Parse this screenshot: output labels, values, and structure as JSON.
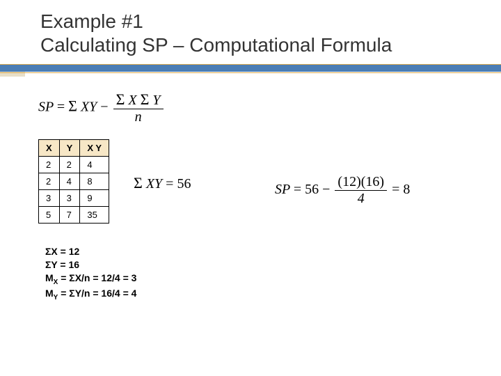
{
  "title": {
    "line1": "Example #1",
    "line2": "Calculating SP – Computational Formula"
  },
  "colors": {
    "accent_bar": "#4a7db5",
    "thin_rule": "#d9a84e",
    "left_block": "#e8dfc8",
    "table_header_bg": "#f7e7c6",
    "text": "#333333"
  },
  "main_formula": {
    "lhs": "SP",
    "op1": "=",
    "term1_sigma": "Σ",
    "term1_var": "XY",
    "minus": "−",
    "frac_num_sigma1": "Σ",
    "frac_num_var1": "X",
    "frac_num_sigma2": "Σ",
    "frac_num_var2": "Y",
    "frac_den": "n"
  },
  "table": {
    "headers": [
      "X",
      "Y",
      "X Y"
    ],
    "rows": [
      [
        "2",
        "2",
        "4"
      ],
      [
        "2",
        "4",
        "8"
      ],
      [
        "3",
        "3",
        "9"
      ],
      [
        "5",
        "7",
        "35"
      ]
    ]
  },
  "sum_xy": {
    "sigma": "Σ",
    "var": "XY",
    "eq": "=",
    "val": "56"
  },
  "sp_calc": {
    "lhs": "SP",
    "eq1": "=",
    "t1": "56",
    "minus": "−",
    "num_open": "(",
    "num_a": "12",
    "num_mid": ")(",
    "num_b": "16",
    "num_close": ")",
    "den": "4",
    "eq2": "=",
    "result": "8"
  },
  "summaries": {
    "l1": "ΣX = 12",
    "l2": "ΣY = 16",
    "l3_pre": "M",
    "l3_sub": "X",
    "l3_rest": " = ΣX/n = 12/4 = 3",
    "l4_pre": "M",
    "l4_sub": "Y",
    "l4_rest": " = ΣY/n = 16/4 = 4"
  }
}
